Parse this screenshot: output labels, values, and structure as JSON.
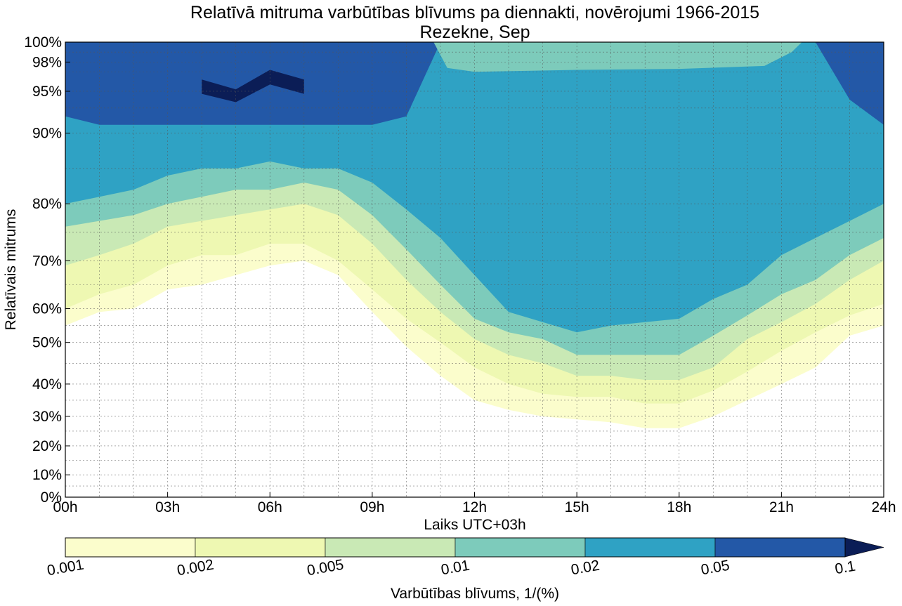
{
  "chart_data": {
    "type": "contour",
    "title": "Relatīvā mitruma varbūtības blīvums pa diennakti, novērojumi 1966-2015",
    "subtitle": "Rezekne, Sep",
    "xlabel": "Laiks UTC+03h",
    "ylabel": "Relatīvais mitrums",
    "xlim": [
      0,
      24
    ],
    "x_ticks": [
      0,
      3,
      6,
      9,
      12,
      15,
      18,
      21,
      24
    ],
    "x_tick_labels": [
      "00h",
      "03h",
      "06h",
      "09h",
      "12h",
      "15h",
      "18h",
      "21h",
      "24h"
    ],
    "y_ticks": [
      0,
      10,
      20,
      30,
      40,
      50,
      60,
      70,
      80,
      90,
      95,
      98,
      100
    ],
    "y_tick_labels": [
      "0%",
      "10%",
      "20%",
      "30%",
      "40%",
      "50%",
      "60%",
      "70%",
      "80%",
      "90%",
      "95%",
      "98%",
      "100%"
    ],
    "y_scale": "stretched toward 100% (logit-like)",
    "grid": true,
    "colorbar": {
      "label": "Varbūtības blīvums, 1/(%)",
      "levels": [
        0.001,
        0.002,
        0.005,
        0.01,
        0.02,
        0.05,
        0.1
      ],
      "tick_labels": [
        "0.001",
        "0.002",
        "0.005",
        "0.01",
        "0.02",
        "0.05",
        "0.1"
      ],
      "colors": [
        "#fbfdcc",
        "#eef8b2",
        "#c9e9b5",
        "#7dcbbb",
        "#2fa2c4",
        "#2358a7",
        "#0b1d56"
      ],
      "extend": "max"
    },
    "x_hours": [
      0,
      1,
      2,
      3,
      4,
      5,
      6,
      7,
      8,
      9,
      10,
      11,
      12,
      13,
      14,
      15,
      16,
      17,
      18,
      19,
      20,
      21,
      22,
      23,
      24
    ],
    "contour_boundaries": [
      {
        "level": 0.001,
        "side": "lower",
        "rh": [
          55,
          59,
          60,
          64,
          65,
          67,
          69,
          70,
          67,
          59,
          49,
          42,
          35,
          32,
          30,
          29,
          28,
          26,
          26,
          30,
          35,
          40,
          44,
          52,
          55
        ]
      },
      {
        "level": 0.002,
        "side": "lower",
        "rh": [
          60,
          63,
          65,
          69,
          71,
          71,
          73,
          73,
          70,
          64,
          57,
          50,
          44,
          40,
          37,
          36,
          36,
          34,
          34,
          38,
          43,
          48,
          53,
          58,
          61
        ]
      },
      {
        "level": 0.005,
        "side": "lower",
        "rh": [
          69,
          71,
          73,
          76,
          77,
          78,
          79,
          80,
          78,
          73,
          66,
          59,
          51,
          47,
          45,
          42,
          42,
          41,
          41,
          44,
          51,
          56,
          61,
          66,
          70
        ]
      },
      {
        "level": 0.01,
        "side": "lower",
        "rh": [
          76,
          77,
          78,
          80,
          81,
          82,
          82,
          83,
          82,
          78,
          72,
          65,
          57,
          53,
          51,
          47,
          47,
          47,
          47,
          52,
          58,
          63,
          66,
          71,
          74
        ]
      },
      {
        "level": 0.02,
        "side": "lower",
        "rh": [
          80,
          81,
          82,
          84,
          85,
          85,
          86,
          85,
          85,
          83,
          79,
          74,
          67,
          59,
          56,
          53,
          55,
          56,
          57,
          62,
          65,
          71,
          74,
          77,
          80
        ]
      },
      {
        "level": 0.05,
        "side": "lower",
        "rh": [
          92,
          91,
          91,
          91,
          91,
          91,
          91,
          91,
          91,
          91,
          92,
          100,
          100,
          100,
          100,
          100,
          100,
          100,
          100,
          100,
          100,
          100,
          100,
          94,
          91
        ]
      },
      {
        "level": 0.1,
        "side": "lower",
        "rh": [
          null,
          null,
          null,
          null,
          95,
          94,
          96,
          95,
          null,
          null,
          null,
          null,
          null,
          null,
          null,
          null,
          null,
          null,
          null,
          null,
          null,
          null,
          null,
          null,
          null
        ]
      }
    ],
    "upper_fringe": "probability drops to the 0.01 level above ~98% between 12h and 21h"
  }
}
